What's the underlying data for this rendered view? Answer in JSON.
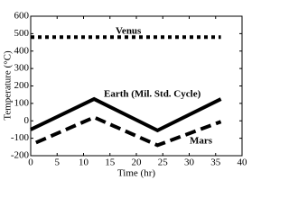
{
  "chart_data": {
    "type": "line",
    "x_label": "Time (hr)",
    "y_label": "Temperature (°C)",
    "xlim": [
      0,
      40
    ],
    "xticks": [
      0,
      5,
      10,
      15,
      20,
      25,
      30,
      35,
      40
    ],
    "ylim": [
      -200,
      600
    ],
    "yticks": [
      -200,
      -100,
      0,
      100,
      200,
      300,
      400,
      500,
      600
    ],
    "series": [
      {
        "name": "Venus",
        "color": "#000000",
        "style": "dotted",
        "x": [
          0,
          36
        ],
        "values": [
          480,
          480
        ]
      },
      {
        "name": "Earth (Mil. Std. Cycle)",
        "color": "#000000",
        "style": "solid",
        "x": [
          0,
          12,
          24,
          36
        ],
        "values": [
          -50,
          125,
          -55,
          125
        ]
      },
      {
        "name": "Mars",
        "color": "#000000",
        "style": "dashed",
        "x": [
          1,
          12,
          24,
          36
        ],
        "values": [
          -125,
          20,
          -140,
          -5
        ]
      }
    ]
  }
}
